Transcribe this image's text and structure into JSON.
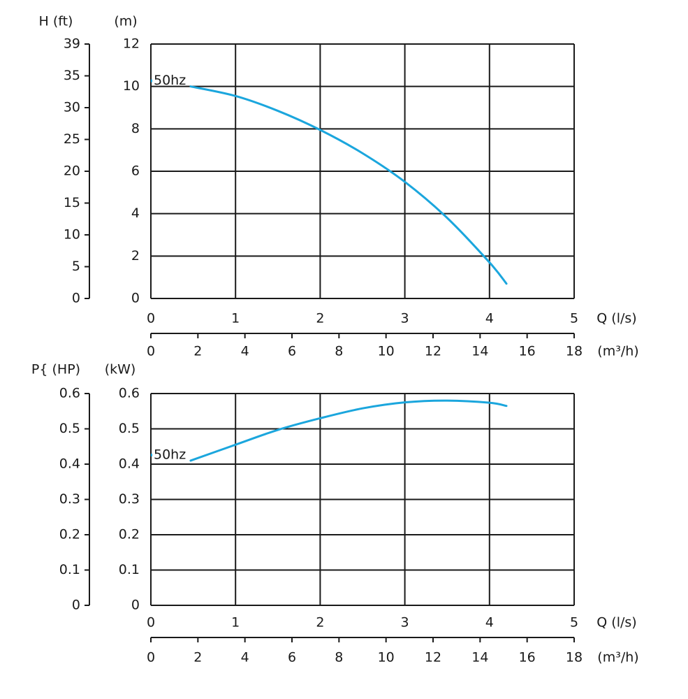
{
  "chart_data": [
    {
      "type": "line",
      "name": "head-chart",
      "y_left_label": "H (ft)",
      "y_right_label": "(m)",
      "x_label": "Q (l/s)",
      "x2_label": "(m³/h)",
      "x_ticks": [
        "0",
        "1",
        "2",
        "3",
        "4",
        "5"
      ],
      "x2_ticks": [
        "0",
        "2",
        "4",
        "6",
        "8",
        "10",
        "12",
        "14",
        "16",
        "18"
      ],
      "y_ticks": [
        "0",
        "2",
        "4",
        "6",
        "8",
        "10",
        "12"
      ],
      "y2_ticks": [
        "0",
        "5",
        "10",
        "15",
        "20",
        "25",
        "30",
        "35",
        "39"
      ],
      "xlim": [
        0,
        5
      ],
      "ylim": [
        0,
        12
      ],
      "grid": true,
      "series": [
        {
          "name": "50hz",
          "color": "#1ba6dd",
          "x": [
            0.47,
            1,
            1.5,
            2,
            2.5,
            3,
            3.5,
            4,
            4.2
          ],
          "y": [
            10.0,
            9.55,
            8.85,
            7.95,
            6.85,
            5.5,
            3.8,
            1.7,
            0.7
          ]
        }
      ],
      "annotation": "50hz"
    },
    {
      "type": "line",
      "name": "power-chart",
      "y_left_label": "P{ (HP)",
      "y_right_label": "(kW)",
      "x_label": "Q (l/s)",
      "x2_label": "(m³/h)",
      "x_ticks": [
        "0",
        "1",
        "2",
        "3",
        "4",
        "5"
      ],
      "x2_ticks": [
        "0",
        "2",
        "4",
        "6",
        "8",
        "10",
        "12",
        "14",
        "16",
        "18"
      ],
      "y_ticks": [
        "0",
        "0.1",
        "0.2",
        "0.3",
        "0.4",
        "0.5",
        "0.6"
      ],
      "y2_ticks": [
        "0",
        "0.1",
        "0.2",
        "0.3",
        "0.4",
        "0.5",
        "0.6"
      ],
      "xlim": [
        0,
        5
      ],
      "ylim": [
        0,
        0.6
      ],
      "grid": true,
      "series": [
        {
          "name": "50hz",
          "color": "#1ba6dd",
          "x": [
            0.47,
            1,
            1.5,
            2,
            2.5,
            3,
            3.5,
            4,
            4.2
          ],
          "y": [
            0.41,
            0.455,
            0.497,
            0.53,
            0.558,
            0.575,
            0.58,
            0.574,
            0.565
          ]
        }
      ],
      "annotation": "50hz"
    }
  ]
}
